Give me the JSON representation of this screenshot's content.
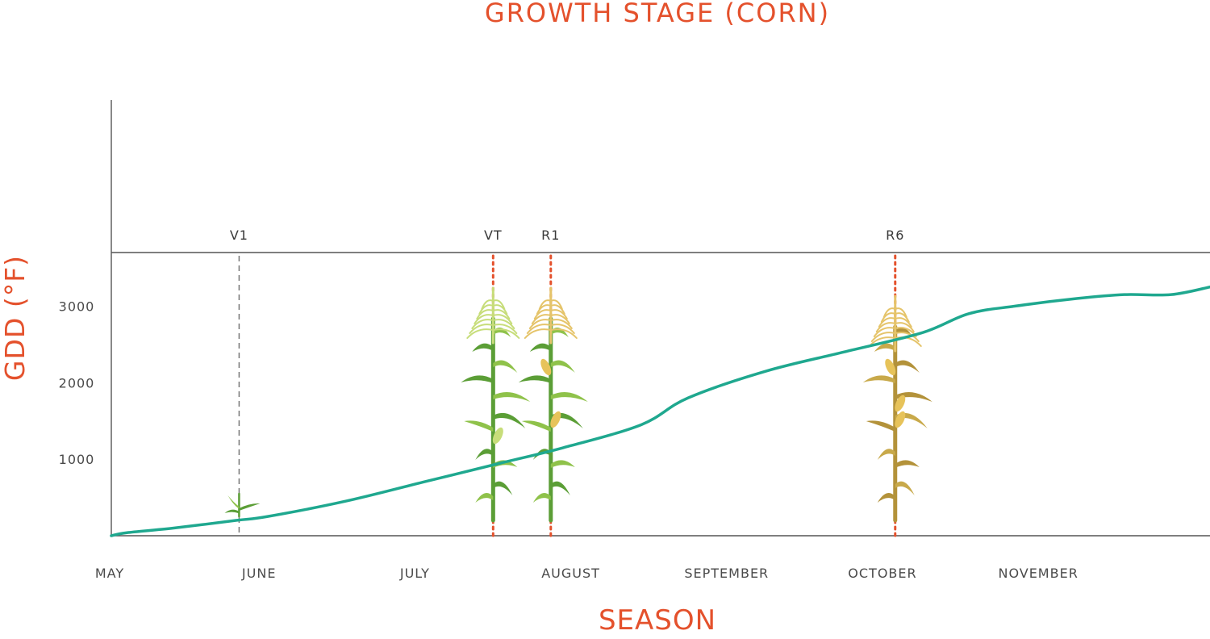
{
  "chart_data": {
    "type": "line",
    "top_title": "GROWTH STAGE (CORN)",
    "xlabel": "SEASON",
    "ylabel": "GDD (°F)",
    "y_ticks": [
      1000,
      2000,
      3000
    ],
    "x_ticks": [
      "MAY",
      "JUNE",
      "JULY",
      "AUGUST",
      "SEPTEMBER",
      "OCTOBER",
      "NOVEMBER"
    ],
    "ylim": [
      0,
      3700
    ],
    "xlim_months": [
      0,
      7.05
    ],
    "series": [
      {
        "color": "#1fa88f",
        "points": [
          [
            0.0,
            0
          ],
          [
            0.1,
            40
          ],
          [
            0.4,
            100
          ],
          [
            0.8,
            200
          ],
          [
            1.0,
            250
          ],
          [
            1.5,
            450
          ],
          [
            2.0,
            700
          ],
          [
            2.5,
            950
          ],
          [
            2.9,
            1150
          ],
          [
            3.4,
            1450
          ],
          [
            3.7,
            1800
          ],
          [
            4.2,
            2150
          ],
          [
            4.7,
            2400
          ],
          [
            5.2,
            2650
          ],
          [
            5.5,
            2900
          ],
          [
            5.8,
            3000
          ],
          [
            6.2,
            3100
          ],
          [
            6.5,
            3150
          ],
          [
            6.8,
            3150
          ],
          [
            7.05,
            3250
          ]
        ]
      }
    ],
    "stages": [
      {
        "label": "V1",
        "month": 0.82,
        "style": "dashed-gray",
        "plant": "seedling"
      },
      {
        "label": "VT",
        "month": 2.45,
        "style": "dotted-red",
        "plant": "green-tassel"
      },
      {
        "label": "R1",
        "month": 2.82,
        "style": "dotted-red",
        "plant": "green-silk"
      },
      {
        "label": "R6",
        "month": 5.03,
        "style": "dotted-red",
        "plant": "mature"
      }
    ],
    "colors": {
      "line": "#1fa88f",
      "accent": "#e4512c",
      "axis": "#555555",
      "stage_dotted": "#e4512c",
      "stage_dashed": "#777777",
      "plant_green": "#5b9e36",
      "plant_light": "#8fc24a",
      "tassel_green": "#c7dd7a",
      "tassel_gold": "#e5c46a",
      "mature_stalk": "#b3923a",
      "mature_leaf": "#c8a94a",
      "ear": "#e7c35a"
    }
  }
}
